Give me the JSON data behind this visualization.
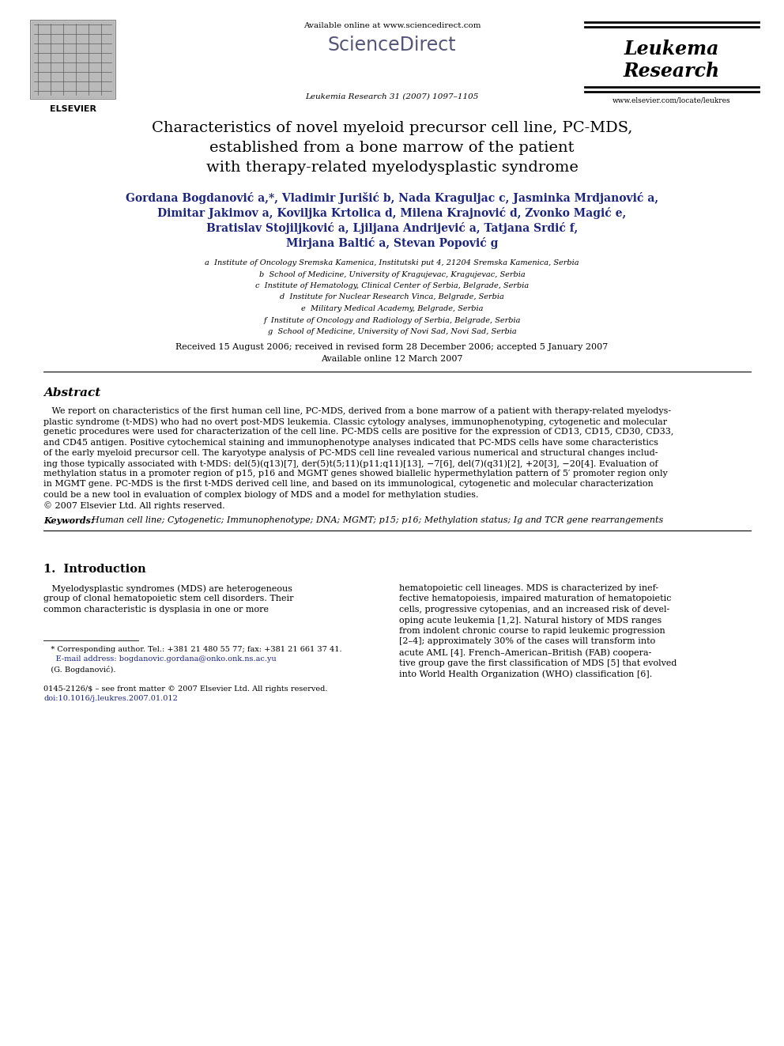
{
  "bg_color": "#ffffff",
  "title_line1": "Characteristics of novel myeloid precursor cell line, PC-MDS,",
  "title_line2": "established from a bone marrow of the patient",
  "title_line3": "with therapy-related myelodysplastic syndrome",
  "journal_header": "Leukemia Research 31 (2007) 1097–1105",
  "available_online": "Available online at www.sciencedirect.com",
  "sciencedirect_text": "ScienceDirect",
  "journal_name_line1": "Leukema",
  "journal_name_line2": "Research",
  "elsevier_text": "ELSEVIER",
  "website": "www.elsevier.com/locate/leukres",
  "authors_line1": "Gordana Bogdanović a,*, Vladimir Jurišić b, Nada Kraguljac c, Jasminka Mrdjanović a,",
  "authors_line2": "Dimitar Jakimov a, Koviljka Krtolica d, Milena Krajnović d, Zvonko Magić e,",
  "authors_line3": "Bratislav Stojiljković a, Ljiljana Andrijević a, Tatjana Srdić f,",
  "authors_line4": "Mirjana Baltić a, Stevan Popović g",
  "affil_a": "a  Institute of Oncology Sremska Kamenica, Institutski put 4, 21204 Sremska Kamenica, Serbia",
  "affil_b": "b  School of Medicine, University of Kragujevac, Kragujevac, Serbia",
  "affil_c": "c  Institute of Hematology, Clinical Center of Serbia, Belgrade, Serbia",
  "affil_d": "d  Institute for Nuclear Research Vinca, Belgrade, Serbia",
  "affil_e": "e  Military Medical Academy, Belgrade, Serbia",
  "affil_f": "f  Institute of Oncology and Radiology of Serbia, Belgrade, Serbia",
  "affil_g": "g  School of Medicine, University of Novi Sad, Novi Sad, Serbia",
  "received": "Received 15 August 2006; received in revised form 28 December 2006; accepted 5 January 2007",
  "available": "Available online 12 March 2007",
  "abstract_heading": "Abstract",
  "abstract_indent": "   We report on characteristics of the first human cell line, PC-MDS, derived from a bone marrow of a patient with therapy-related myelodys-",
  "abstract_lines": [
    "   We report on characteristics of the first human cell line, PC-MDS, derived from a bone marrow of a patient with therapy-related myelodys-",
    "plastic syndrome (t-MDS) who had no overt post-MDS leukemia. Classic cytology analyses, immunophenotyping, cytogenetic and molecular",
    "genetic procedures were used for characterization of the cell line. PC-MDS cells are positive for the expression of CD13, CD15, CD30, CD33,",
    "and CD45 antigen. Positive cytochemical staining and immunophenotype analyses indicated that PC-MDS cells have some characteristics",
    "of the early myeloid precursor cell. The karyotype analysis of PC-MDS cell line revealed various numerical and structural changes includ-",
    "ing those typically associated with t-MDS: del(5)(q13)[7], der(5)t(5;11)(p11;q11)[13], −7[6], del(7)(q31)[2], +20[3], −20[4]. Evaluation of",
    "methylation status in a promoter region of p15, p16 and MGMT genes showed biallelic hypermethylation pattern of 5′ promoter region only",
    "in MGMT gene. PC-MDS is the first t-MDS derived cell line, and based on its immunological, cytogenetic and molecular characterization",
    "could be a new tool in evaluation of complex biology of MDS and a model for methylation studies.",
    "© 2007 Elsevier Ltd. All rights reserved."
  ],
  "keywords_bold": "Keywords:",
  "keywords_italic": "  Human cell line; Cytogenetic; Immunophenotype; DNA; MGMT; p15; p16; Methylation status; Ig and TCR gene rearrangements",
  "intro_heading": "1.  Introduction",
  "intro_col1_lines": [
    "   Myelodysplastic syndromes (MDS) are heterogeneous",
    "group of clonal hematopoietic stem cell disorders. Their",
    "common characteristic is dysplasia in one or more"
  ],
  "intro_col2_lines": [
    "hematopoietic cell lineages. MDS is characterized by inef-",
    "fective hematopoiesis, impaired maturation of hematopoietic",
    "cells, progressive cytopenias, and an increased risk of devel-",
    "oping acute leukemia [1,2]. Natural history of MDS ranges",
    "from indolent chronic course to rapid leukemic progression",
    "[2–4]; approximately 30% of the cases will transform into",
    "acute AML [4]. French–American–British (FAB) coopera-",
    "tive group gave the first classification of MDS [5] that evolved",
    "into World Health Organization (WHO) classification [6]."
  ],
  "footnote1": "   * Corresponding author. Tel.: +381 21 480 55 77; fax: +381 21 661 37 41.",
  "footnote2": "     E-mail address: bogdanovic.gordana@onko.onk.ns.ac.yu",
  "footnote3": "   (G. Bogdanović).",
  "footnote4": "0145-2126/$ – see front matter © 2007 Elsevier Ltd. All rights reserved.",
  "footnote5": "doi:10.1016/j.leukres.2007.01.012",
  "author_color": "#1a237e",
  "ref_color": "#1a237e",
  "link_color": "#1a237e"
}
